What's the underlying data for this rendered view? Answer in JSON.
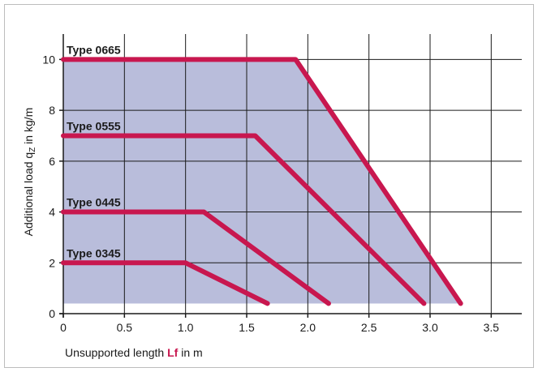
{
  "chart_data": {
    "type": "line",
    "title": "",
    "xlabel": {
      "prefix": "Unsupported length ",
      "highlight": "Lf",
      "suffix": " in m"
    },
    "ylabel": {
      "main": "Additional load q",
      "sub": "Z",
      "suffix": " in kg/m"
    },
    "xlim": [
      0,
      3.75
    ],
    "ylim": [
      0,
      11
    ],
    "xticks": [
      0,
      0.5,
      1.0,
      1.5,
      2.0,
      2.5,
      3.0,
      3.5
    ],
    "xtick_labels": [
      "0",
      "0.5",
      "1.0",
      "1.5",
      "2.0",
      "2.5",
      "3.0",
      "3.5"
    ],
    "yticks": [
      0,
      2,
      4,
      6,
      8,
      10
    ],
    "ytick_labels": [
      "0",
      "2",
      "4",
      "6",
      "8",
      "10"
    ],
    "grid": true,
    "fill_color": "#b9bddb",
    "line_color": "#c8174f",
    "series": [
      {
        "name": "Type 0665",
        "x": [
          0,
          1.9,
          3.25
        ],
        "y": [
          10,
          10,
          0.4
        ]
      },
      {
        "name": "Type 0555",
        "x": [
          0,
          1.57,
          2.95
        ],
        "y": [
          7,
          7,
          0.4
        ]
      },
      {
        "name": "Type 0445",
        "x": [
          0,
          1.15,
          2.17
        ],
        "y": [
          4,
          4,
          0.4
        ]
      },
      {
        "name": "Type 0345",
        "x": [
          0,
          1.0,
          1.67
        ],
        "y": [
          2,
          2,
          0.4
        ]
      }
    ]
  }
}
